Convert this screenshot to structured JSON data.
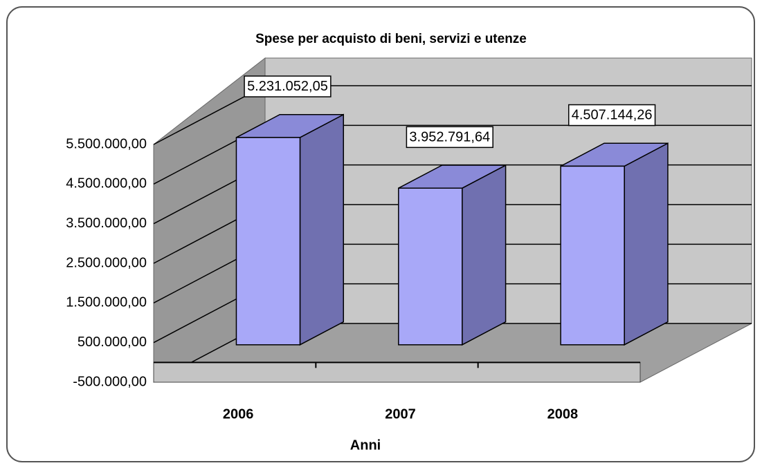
{
  "chart_data": {
    "type": "bar3d",
    "title": "Spese per acquisto di beni, servizi e utenze",
    "x_label": "Anni",
    "categories": [
      "2006",
      "2007",
      "2008"
    ],
    "values": [
      5231052.05,
      3952791.64,
      4507144.26
    ],
    "value_labels": [
      "5.231.052,05",
      "3.952.791,64",
      "4.507.144,26"
    ],
    "color": "#a8a8f8",
    "ylim": [
      -500000,
      5500000
    ],
    "yticks": [
      {
        "value": -500000,
        "label": "-500.000,00"
      },
      {
        "value": 500000,
        "label": "500.000,00"
      },
      {
        "value": 1500000,
        "label": "1.500.000,00"
      },
      {
        "value": 2500000,
        "label": "2.500.000,00"
      },
      {
        "value": 3500000,
        "label": "3.500.000,00"
      },
      {
        "value": 4500000,
        "label": "4.500.000,00"
      },
      {
        "value": 5500000,
        "label": "5.500.000,00"
      }
    ],
    "grid": true
  }
}
